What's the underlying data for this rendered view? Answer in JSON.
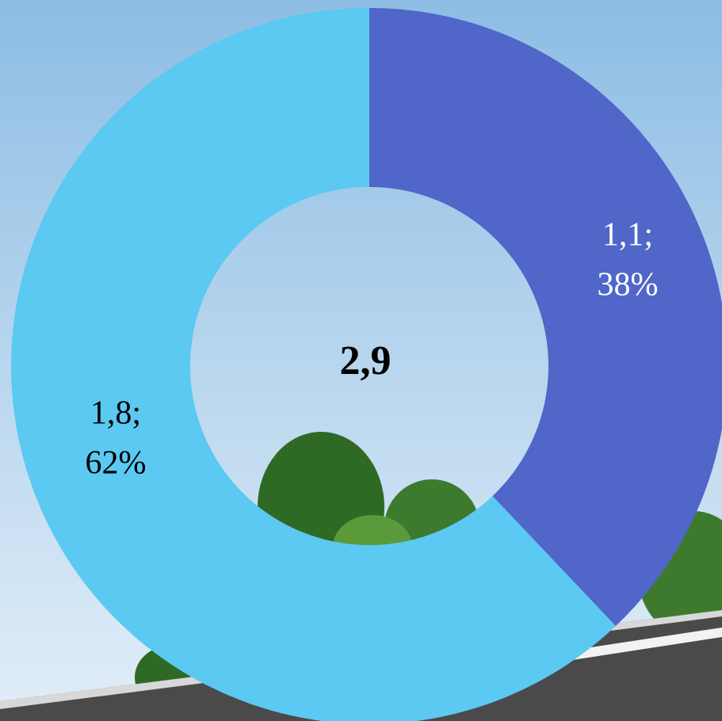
{
  "chart_data": {
    "type": "pie",
    "variant": "donut",
    "center_total": "2,9",
    "slices": [
      {
        "value": 1.1,
        "percent": 38,
        "label_line1": "1,1;",
        "label_line2": "38%",
        "color": "#5066c8"
      },
      {
        "value": 1.8,
        "percent": 62,
        "label_line1": "1,8;",
        "label_line2": "62%",
        "color": "#5bc9f2"
      }
    ],
    "legend": "none"
  },
  "colors": {
    "sky_top": "#8dbde4",
    "sky_bottom": "#e2eef8",
    "road": "#4a4a4a",
    "road_stripe": "#f2f2f2",
    "tree_dark": "#2f6a25",
    "tree_light": "#5a9a3a",
    "label_text": "#000000"
  }
}
